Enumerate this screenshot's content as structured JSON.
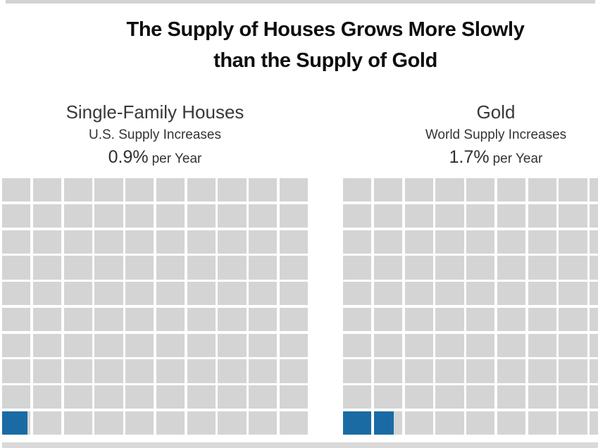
{
  "title": {
    "line1": "The Supply of Houses Grows More Slowly",
    "line2": "than the Supply of Gold"
  },
  "panels": [
    {
      "heading": "Single-Family Houses",
      "subheading": "U.S. Supply Increases",
      "rate_value": "0.9%",
      "rate_suffix": "per Year"
    },
    {
      "heading": "Gold",
      "subheading": "World Supply Increases",
      "rate_value": "1.7%",
      "rate_suffix": "per Year"
    }
  ],
  "chart_data": [
    {
      "type": "waffle",
      "title": "Single-Family Houses",
      "subtitle": "U.S. Supply Increases 0.9% per Year",
      "value_percent_per_year": 0.9,
      "grid": {
        "rows": 10,
        "cols": 10,
        "cell_represents_percent": 1,
        "total_percent": 100
      },
      "filled_cells": 0.9,
      "fill_origin": "bottom-left",
      "colors": {
        "filled": "#1a6ba4",
        "empty": "#d4d4d4",
        "gap": "#ffffff"
      }
    },
    {
      "type": "waffle",
      "title": "Gold",
      "subtitle": "World Supply Increases 1.7% per Year",
      "value_percent_per_year": 1.7,
      "grid": {
        "rows": 10,
        "cols": 10,
        "cell_represents_percent": 1,
        "total_percent": 100
      },
      "filled_cells": 1.7,
      "fill_origin": "bottom-left",
      "colors": {
        "filled": "#1a6ba4",
        "empty": "#d4d4d4",
        "gap": "#ffffff"
      }
    }
  ]
}
